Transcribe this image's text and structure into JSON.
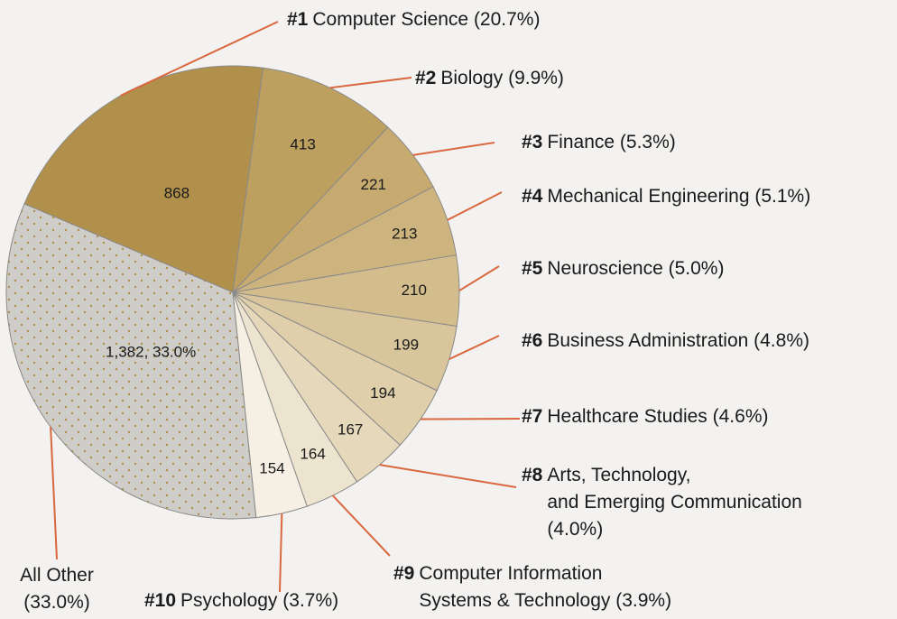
{
  "chart_data": {
    "type": "pie",
    "values": [
      868,
      413,
      221,
      213,
      210,
      199,
      194,
      167,
      164,
      154,
      1382
    ],
    "value_labels": [
      "868",
      "413",
      "221",
      "213",
      "210",
      "199",
      "194",
      "167",
      "164",
      "154",
      "1,382, 33.0%"
    ],
    "labels": [
      {
        "rank": "#1",
        "lines": [
          "Computer Science (20.7%)"
        ]
      },
      {
        "rank": "#2",
        "lines": [
          "Biology (9.9%)"
        ]
      },
      {
        "rank": "#3",
        "lines": [
          "Finance (5.3%)"
        ]
      },
      {
        "rank": "#4",
        "lines": [
          "Mechanical Engineering (5.1%)"
        ]
      },
      {
        "rank": "#5",
        "lines": [
          "Neuroscience (5.0%)"
        ]
      },
      {
        "rank": "#6",
        "lines": [
          "Business Administration (4.8%)"
        ]
      },
      {
        "rank": "#7",
        "lines": [
          "Healthcare Studies (4.6%)"
        ]
      },
      {
        "rank": "#8",
        "lines": [
          "Arts, Technology,",
          "and Emerging Communication",
          "(4.0%)"
        ]
      },
      {
        "rank": "#9",
        "lines": [
          "Computer Information",
          "Systems & Technology (3.9%)"
        ]
      },
      {
        "rank": "#10",
        "lines": [
          "Psychology (3.7%)"
        ]
      },
      {
        "lines": [
          "All Other",
          "(33.0%)"
        ]
      }
    ],
    "colors": [
      "#b0904a",
      "#bd9f60",
      "#c6aa70",
      "#cdb47e",
      "#d3bd8c",
      "#d9c59b",
      "#dfcfaa",
      "#e6d9bb",
      "#ede4cf",
      "#f5f0e3",
      "#cfcdca"
    ],
    "leader_color": "#d9683f"
  }
}
